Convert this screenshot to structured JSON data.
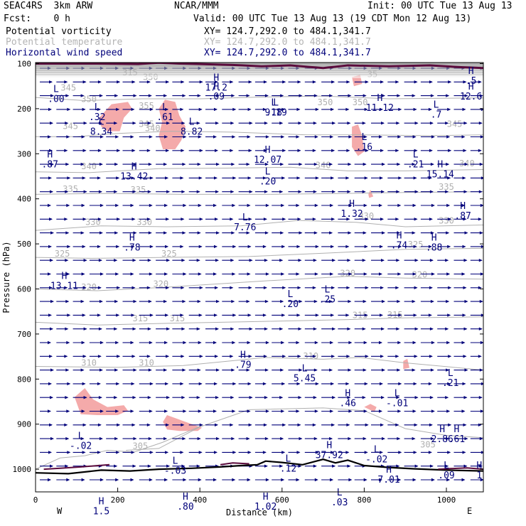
{
  "header": {
    "model": "SEAC4RS  3km ARW",
    "org": "NCAR/MMM",
    "init": "Init: 00 UTC Tue 13 Aug 13",
    "fcst": "Fcst:    0 h",
    "valid": "Valid: 00 UTC Tue 13 Aug 13 (19 CDT Mon 12 Aug 13)",
    "fields": [
      {
        "name": "Potential vorticity",
        "xy": "XY= 124.7,292.0 to 484.1,341.7",
        "color": "#000000"
      },
      {
        "name": "Potential temperature",
        "xy": "XY= 124.7,292.0 to 484.1,341.7",
        "color": "#b4b4b4"
      },
      {
        "name": "Horizontal wind speed",
        "xy": "XY= 124.7,292.0 to 484.1,341.7",
        "color": "#00007a"
      }
    ]
  },
  "colors": {
    "theta": "#b0b0b0",
    "wind": "#00007a",
    "pv_fill": "#f4aaaa",
    "pv_line": "#5a0a3c",
    "terrain": "#000000",
    "high_label": "#00007a",
    "low_label": "#00007a"
  },
  "chart_data": {
    "type": "cross-section",
    "xlabel": "Distance (km)",
    "ylabel": "Pressure (hPa)",
    "xlim": [
      0,
      1090
    ],
    "ylim": [
      1050,
      100
    ],
    "x_ticks": [
      "0",
      "200",
      "400",
      "600",
      "800",
      "1000"
    ],
    "x_tick_values": [
      0,
      200,
      400,
      600,
      800,
      1000
    ],
    "y_ticks": [
      "100",
      "200",
      "300",
      "400",
      "500",
      "600",
      "700",
      "800",
      "900",
      "1000"
    ],
    "y_tick_values": [
      100,
      200,
      300,
      400,
      500,
      600,
      700,
      800,
      900,
      1000
    ],
    "left_end": "W",
    "right_end": "E",
    "grid": false,
    "theta_contours": [
      {
        "level": "345",
        "points": [
          [
            0,
            175
          ],
          [
            120,
            182
          ],
          [
            260,
            178
          ],
          [
            400,
            178
          ],
          [
            560,
            174
          ],
          [
            700,
            172
          ],
          [
            860,
            178
          ],
          [
            1090,
            176
          ]
        ],
        "labels": [
          [
            80,
            160
          ]
        ]
      },
      {
        "level": "345",
        "points": [
          [
            0,
            262
          ],
          [
            100,
            262
          ],
          [
            200,
            255
          ],
          [
            330,
            250
          ],
          [
            480,
            252
          ],
          [
            660,
            258
          ],
          [
            800,
            258
          ],
          [
            960,
            260
          ],
          [
            1090,
            258
          ]
        ],
        "labels": [
          [
            85,
            245
          ],
          [
            270,
            240
          ],
          [
            1020,
            240
          ]
        ]
      },
      {
        "level": "340",
        "points": [
          [
            0,
            340
          ],
          [
            130,
            342
          ],
          [
            300,
            333
          ],
          [
            450,
            332
          ],
          [
            620,
            330
          ],
          [
            760,
            338
          ],
          [
            900,
            338
          ],
          [
            1090,
            335
          ]
        ],
        "labels": [
          [
            130,
            334
          ],
          [
            700,
            332
          ],
          [
            1050,
            328
          ]
        ]
      },
      {
        "level": "335",
        "points": [
          [
            0,
            390
          ],
          [
            180,
            388
          ],
          [
            360,
            390
          ],
          [
            560,
            390
          ],
          [
            760,
            388
          ],
          [
            900,
            386
          ],
          [
            1090,
            384
          ]
        ],
        "labels": [
          [
            85,
            385
          ],
          [
            250,
            386
          ],
          [
            1000,
            380
          ]
        ]
      },
      {
        "level": "330",
        "points": [
          [
            0,
            470
          ],
          [
            160,
            460
          ],
          [
            320,
            462
          ],
          [
            500,
            460
          ],
          [
            640,
            448
          ],
          [
            780,
            452
          ],
          [
            900,
            462
          ],
          [
            1090,
            458
          ]
        ],
        "labels": [
          [
            140,
            458
          ],
          [
            265,
            458
          ],
          [
            805,
            445
          ],
          [
            1000,
            455
          ]
        ]
      },
      {
        "level": "325",
        "points": [
          [
            0,
            530
          ],
          [
            140,
            532
          ],
          [
            320,
            530
          ],
          [
            520,
            528
          ],
          [
            720,
            520
          ],
          [
            900,
            512
          ],
          [
            1090,
            510
          ]
        ],
        "labels": [
          [
            65,
            528
          ],
          [
            325,
            528
          ],
          [
            925,
            508
          ]
        ]
      },
      {
        "level": "320",
        "points": [
          [
            0,
            600
          ],
          [
            150,
            604
          ],
          [
            320,
            596
          ],
          [
            560,
            582
          ],
          [
            760,
            572
          ],
          [
            900,
            576
          ],
          [
            1090,
            578
          ]
        ],
        "labels": [
          [
            130,
            602
          ],
          [
            305,
            595
          ],
          [
            760,
            572
          ],
          [
            935,
            575
          ]
        ]
      },
      {
        "level": "315",
        "points": [
          [
            0,
            674
          ],
          [
            150,
            680
          ],
          [
            330,
            676
          ],
          [
            560,
            672
          ],
          [
            760,
            668
          ],
          [
            900,
            664
          ],
          [
            1090,
            662
          ]
        ],
        "labels": [
          [
            255,
            672
          ],
          [
            345,
            672
          ],
          [
            790,
            665
          ],
          [
            875,
            664
          ]
        ]
      },
      {
        "level": "310",
        "points": [
          [
            0,
            772
          ],
          [
            200,
            774
          ],
          [
            360,
            770
          ],
          [
            560,
            752
          ],
          [
            700,
            756
          ],
          [
            790,
            752
          ],
          [
            900,
            764
          ],
          [
            1090,
            780
          ]
        ],
        "labels": [
          [
            130,
            770
          ],
          [
            270,
            770
          ],
          [
            670,
            755
          ]
        ]
      },
      {
        "level": "305",
        "points": [
          [
            220,
            958
          ],
          [
            300,
            954
          ],
          [
            400,
            906
          ],
          [
            520,
            868
          ],
          [
            700,
            864
          ],
          [
            800,
            870
          ],
          [
            900,
            910
          ],
          [
            1000,
            925
          ],
          [
            1090,
            930
          ]
        ],
        "labels": [
          [
            255,
            955
          ],
          [
            955,
            952
          ]
        ]
      },
      {
        "level": "",
        "points": [
          [
            0,
            1000
          ],
          [
            60,
            975
          ],
          [
            120,
            970
          ],
          [
            175,
            958
          ],
          [
            240,
            962
          ],
          [
            310,
            940
          ],
          [
            400,
            905
          ]
        ],
        "labels": []
      }
    ],
    "theta_inline_labels": [
      {
        "text": "350",
        "x": 280,
        "y": 136
      },
      {
        "text": "350",
        "x": 130,
        "y": 185
      },
      {
        "text": "355",
        "x": 270,
        "y": 200
      },
      {
        "text": "340",
        "x": 285,
        "y": 250
      },
      {
        "text": "35",
        "x": 820,
        "y": 130
      },
      {
        "text": "350",
        "x": 705,
        "y": 192
      },
      {
        "text": "350",
        "x": 790,
        "y": 192
      },
      {
        "text": "315",
        "x": 230,
        "y": 126
      }
    ],
    "pv_regions": [
      [
        [
          155,
          220
        ],
        [
          185,
          190
        ],
        [
          225,
          185
        ],
        [
          235,
          200
        ],
        [
          215,
          220
        ],
        [
          205,
          250
        ],
        [
          175,
          250
        ],
        [
          160,
          240
        ]
      ],
      [
        [
          300,
          200
        ],
        [
          315,
          180
        ],
        [
          340,
          185
        ],
        [
          350,
          215
        ],
        [
          365,
          240
        ],
        [
          355,
          270
        ],
        [
          340,
          290
        ],
        [
          310,
          290
        ],
        [
          300,
          260
        ],
        [
          308,
          230
        ]
      ],
      [
        [
          770,
          130
        ],
        [
          790,
          125
        ],
        [
          795,
          145
        ],
        [
          775,
          150
        ]
      ],
      [
        [
          770,
          240
        ],
        [
          785,
          235
        ],
        [
          795,
          260
        ],
        [
          800,
          295
        ],
        [
          785,
          305
        ],
        [
          770,
          285
        ]
      ],
      [
        [
          810,
          390
        ],
        [
          815,
          380
        ],
        [
          822,
          395
        ],
        [
          812,
          398
        ]
      ],
      [
        [
          95,
          840
        ],
        [
          120,
          820
        ],
        [
          140,
          845
        ],
        [
          175,
          862
        ],
        [
          215,
          858
        ],
        [
          225,
          870
        ],
        [
          200,
          880
        ],
        [
          150,
          880
        ],
        [
          110,
          878
        ]
      ],
      [
        [
          310,
          895
        ],
        [
          320,
          880
        ],
        [
          365,
          895
        ],
        [
          405,
          908
        ],
        [
          395,
          915
        ],
        [
          350,
          915
        ],
        [
          320,
          912
        ]
      ],
      [
        [
          800,
          862
        ],
        [
          815,
          855
        ],
        [
          830,
          862
        ],
        [
          825,
          873
        ]
      ],
      [
        [
          895,
          760
        ],
        [
          905,
          755
        ],
        [
          910,
          775
        ],
        [
          895,
          778
        ]
      ]
    ],
    "labels": [
      {
        "type": "L",
        "x": 50,
        "y": 185,
        "value": ".00"
      },
      {
        "type": "L",
        "x": 150,
        "y": 225,
        "value": ".32"
      },
      {
        "type": "L",
        "x": 160,
        "y": 258,
        "value": "8.34"
      },
      {
        "type": "L",
        "x": 315,
        "y": 225,
        "value": ".61"
      },
      {
        "type": "L",
        "x": 380,
        "y": 258,
        "value": "8.82"
      },
      {
        "type": "H",
        "x": 440,
        "y": 160,
        "value": "17.2"
      },
      {
        "type": "H",
        "x": 440,
        "y": 180,
        "value": ".09"
      },
      {
        "type": "L",
        "x": 585,
        "y": 215,
        "value": "9.19"
      },
      {
        "type": "L",
        "x": 580,
        "y": 215,
        "value": ".18"
      },
      {
        "type": "L",
        "x": 800,
        "y": 292,
        "value": ".16"
      },
      {
        "type": "H",
        "x": 838,
        "y": 205,
        "value": "11.12"
      },
      {
        "type": "L",
        "x": 975,
        "y": 220,
        "value": ".7"
      },
      {
        "type": "H",
        "x": 1060,
        "y": 180,
        "value": "12.6"
      },
      {
        "type": "H",
        "x": 1060,
        "y": 145,
        "value": ".5"
      },
      {
        "type": "H",
        "x": 35,
        "y": 330,
        "value": ".87"
      },
      {
        "type": "H",
        "x": 240,
        "y": 357,
        "value": "13.42"
      },
      {
        "type": "H",
        "x": 565,
        "y": 320,
        "value": "12.07"
      },
      {
        "type": "L",
        "x": 565,
        "y": 368,
        "value": ".20"
      },
      {
        "type": "L",
        "x": 925,
        "y": 330,
        "value": ".21"
      },
      {
        "type": "H",
        "x": 985,
        "y": 352,
        "value": "15.14"
      },
      {
        "type": "H",
        "x": 770,
        "y": 440,
        "value": "1.32"
      },
      {
        "type": "H",
        "x": 1040,
        "y": 445,
        "value": ".87"
      },
      {
        "type": "L",
        "x": 510,
        "y": 470,
        "value": "7.76"
      },
      {
        "type": "H",
        "x": 235,
        "y": 515,
        "value": ".78"
      },
      {
        "type": "H",
        "x": 885,
        "y": 510,
        "value": ".74"
      },
      {
        "type": "H",
        "x": 970,
        "y": 515,
        "value": ".88"
      },
      {
        "type": "H",
        "x": 70,
        "y": 600,
        "value": "13.11"
      },
      {
        "type": "L",
        "x": 620,
        "y": 640,
        "value": ".20"
      },
      {
        "type": "L",
        "x": 710,
        "y": 630,
        "value": ".25"
      },
      {
        "type": "H",
        "x": 505,
        "y": 775,
        "value": ".79"
      },
      {
        "type": "L",
        "x": 655,
        "y": 805,
        "value": "5.45"
      },
      {
        "type": "L",
        "x": 1010,
        "y": 815,
        "value": ".21"
      },
      {
        "type": "H",
        "x": 760,
        "y": 860,
        "value": ".46"
      },
      {
        "type": "L",
        "x": 880,
        "y": 860,
        "value": "-.01"
      },
      {
        "type": "L",
        "x": 110,
        "y": 955,
        "value": "-.02"
      },
      {
        "type": "L",
        "x": 340,
        "y": 1010,
        "value": "-.03"
      },
      {
        "type": "H",
        "x": 990,
        "y": 940,
        "value": "2.86"
      },
      {
        "type": "H",
        "x": 1025,
        "y": 940,
        "value": ".61"
      },
      {
        "type": "H",
        "x": 715,
        "y": 975,
        "value": "37.92"
      },
      {
        "type": "L",
        "x": 830,
        "y": 985,
        "value": "-.02"
      },
      {
        "type": "L",
        "x": 615,
        "y": 1005,
        "value": ".12"
      },
      {
        "type": "H",
        "x": 860,
        "y": 1030,
        "value": "7.01"
      },
      {
        "type": "L",
        "x": 1000,
        "y": 1020,
        "value": ".09"
      },
      {
        "type": "H",
        "x": 1080,
        "y": 1020,
        "value": "1"
      },
      {
        "type": "H",
        "x": 365,
        "y": 1090,
        "value": ".80"
      },
      {
        "type": "H",
        "x": 160,
        "y": 1100,
        "value": "1.5"
      },
      {
        "type": "H",
        "x": 560,
        "y": 1090,
        "value": "1.02"
      },
      {
        "type": "L",
        "x": 740,
        "y": 1080,
        "value": ".03"
      }
    ]
  }
}
